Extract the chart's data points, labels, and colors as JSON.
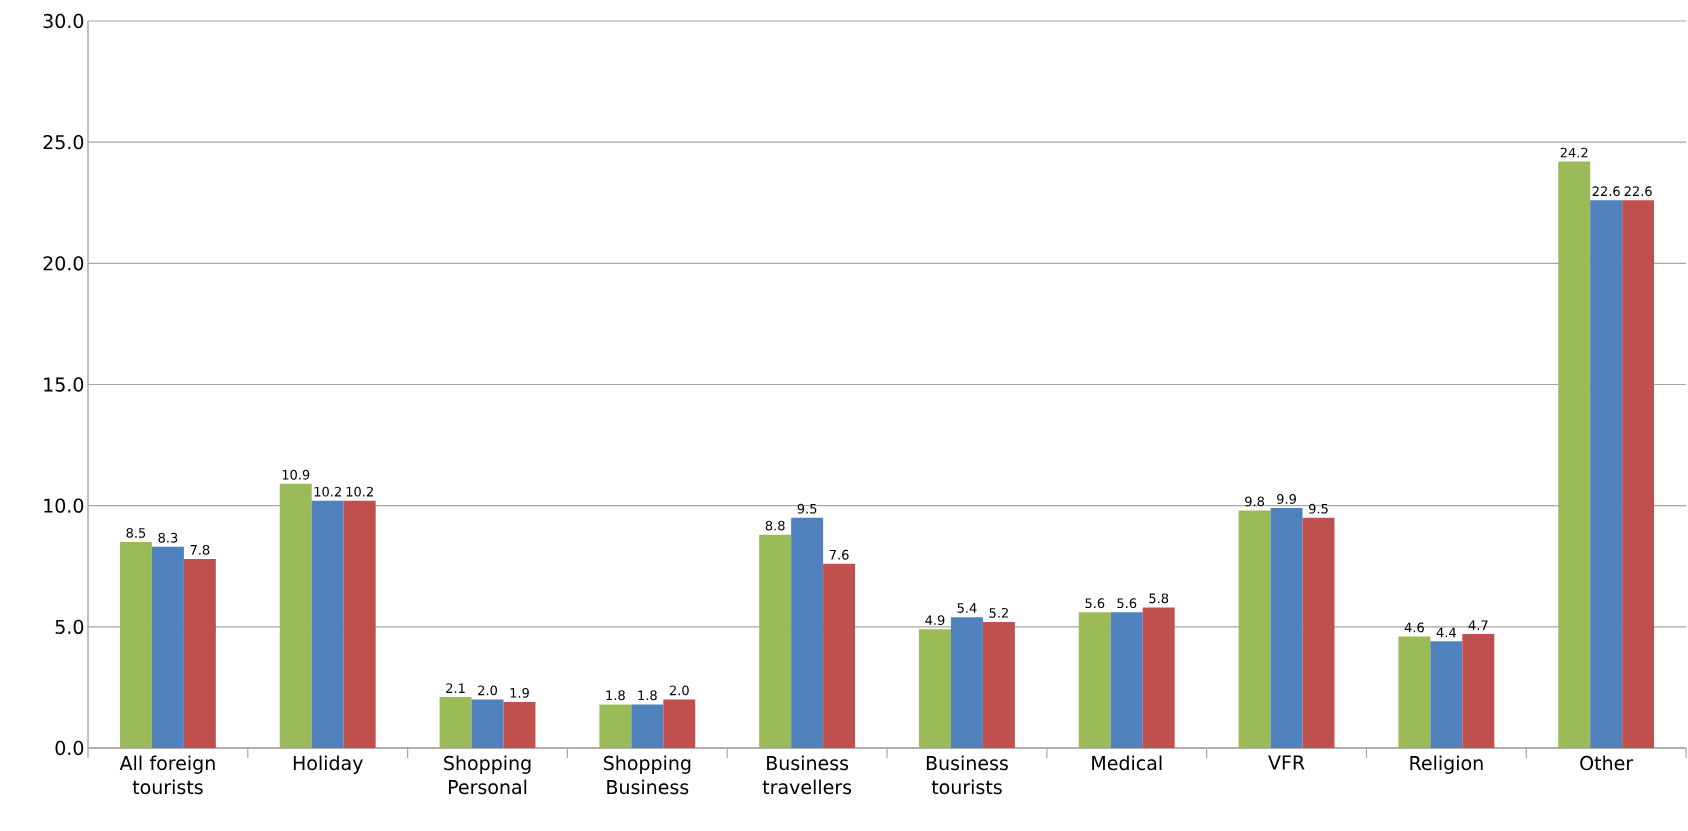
{
  "chart_data": {
    "type": "bar",
    "categories": [
      "All foreign tourists",
      "Holiday",
      "Shopping Personal",
      "Shopping Business",
      "Business travellers",
      "Business tourists",
      "Medical",
      "VFR",
      "Religion",
      "Other"
    ],
    "series": [
      {
        "color": "#9bbb59",
        "values": [
          8.5,
          10.9,
          2.1,
          1.8,
          8.8,
          4.9,
          5.6,
          9.8,
          4.6,
          24.2
        ],
        "value_labels": [
          "8.5",
          "10.9",
          "2.1",
          "1.8",
          "8.8",
          "4.9",
          "5.6",
          "9.8",
          "4.6",
          "24.2"
        ]
      },
      {
        "color": "#4f81bd",
        "values": [
          8.3,
          10.2,
          2.0,
          1.8,
          9.5,
          5.4,
          5.6,
          9.9,
          4.4,
          22.6
        ],
        "value_labels": [
          "8.3",
          "10.2",
          "2.0",
          "1.8",
          "9.5",
          "5.4",
          "5.6",
          "9.9",
          "4.4",
          "22.6"
        ]
      },
      {
        "color": "#c0504d",
        "values": [
          7.8,
          10.2,
          1.9,
          2.0,
          7.6,
          5.2,
          5.8,
          9.5,
          4.7,
          22.6
        ],
        "value_labels": [
          "7.8",
          "10.2",
          "1.9",
          "2.0",
          "7.6",
          "5.2",
          "5.8",
          "9.5",
          "4.7",
          "22.6"
        ]
      }
    ],
    "ylim": [
      0,
      30
    ],
    "yticks": [
      {
        "value": 0,
        "label": "0.0"
      },
      {
        "value": 5,
        "label": "5.0"
      },
      {
        "value": 10,
        "label": "10.0"
      },
      {
        "value": 15,
        "label": "15.0"
      },
      {
        "value": 20,
        "label": "20.0"
      },
      {
        "value": 25,
        "label": "25.0"
      },
      {
        "value": 30,
        "label": "30.0"
      }
    ],
    "grid": "y"
  }
}
